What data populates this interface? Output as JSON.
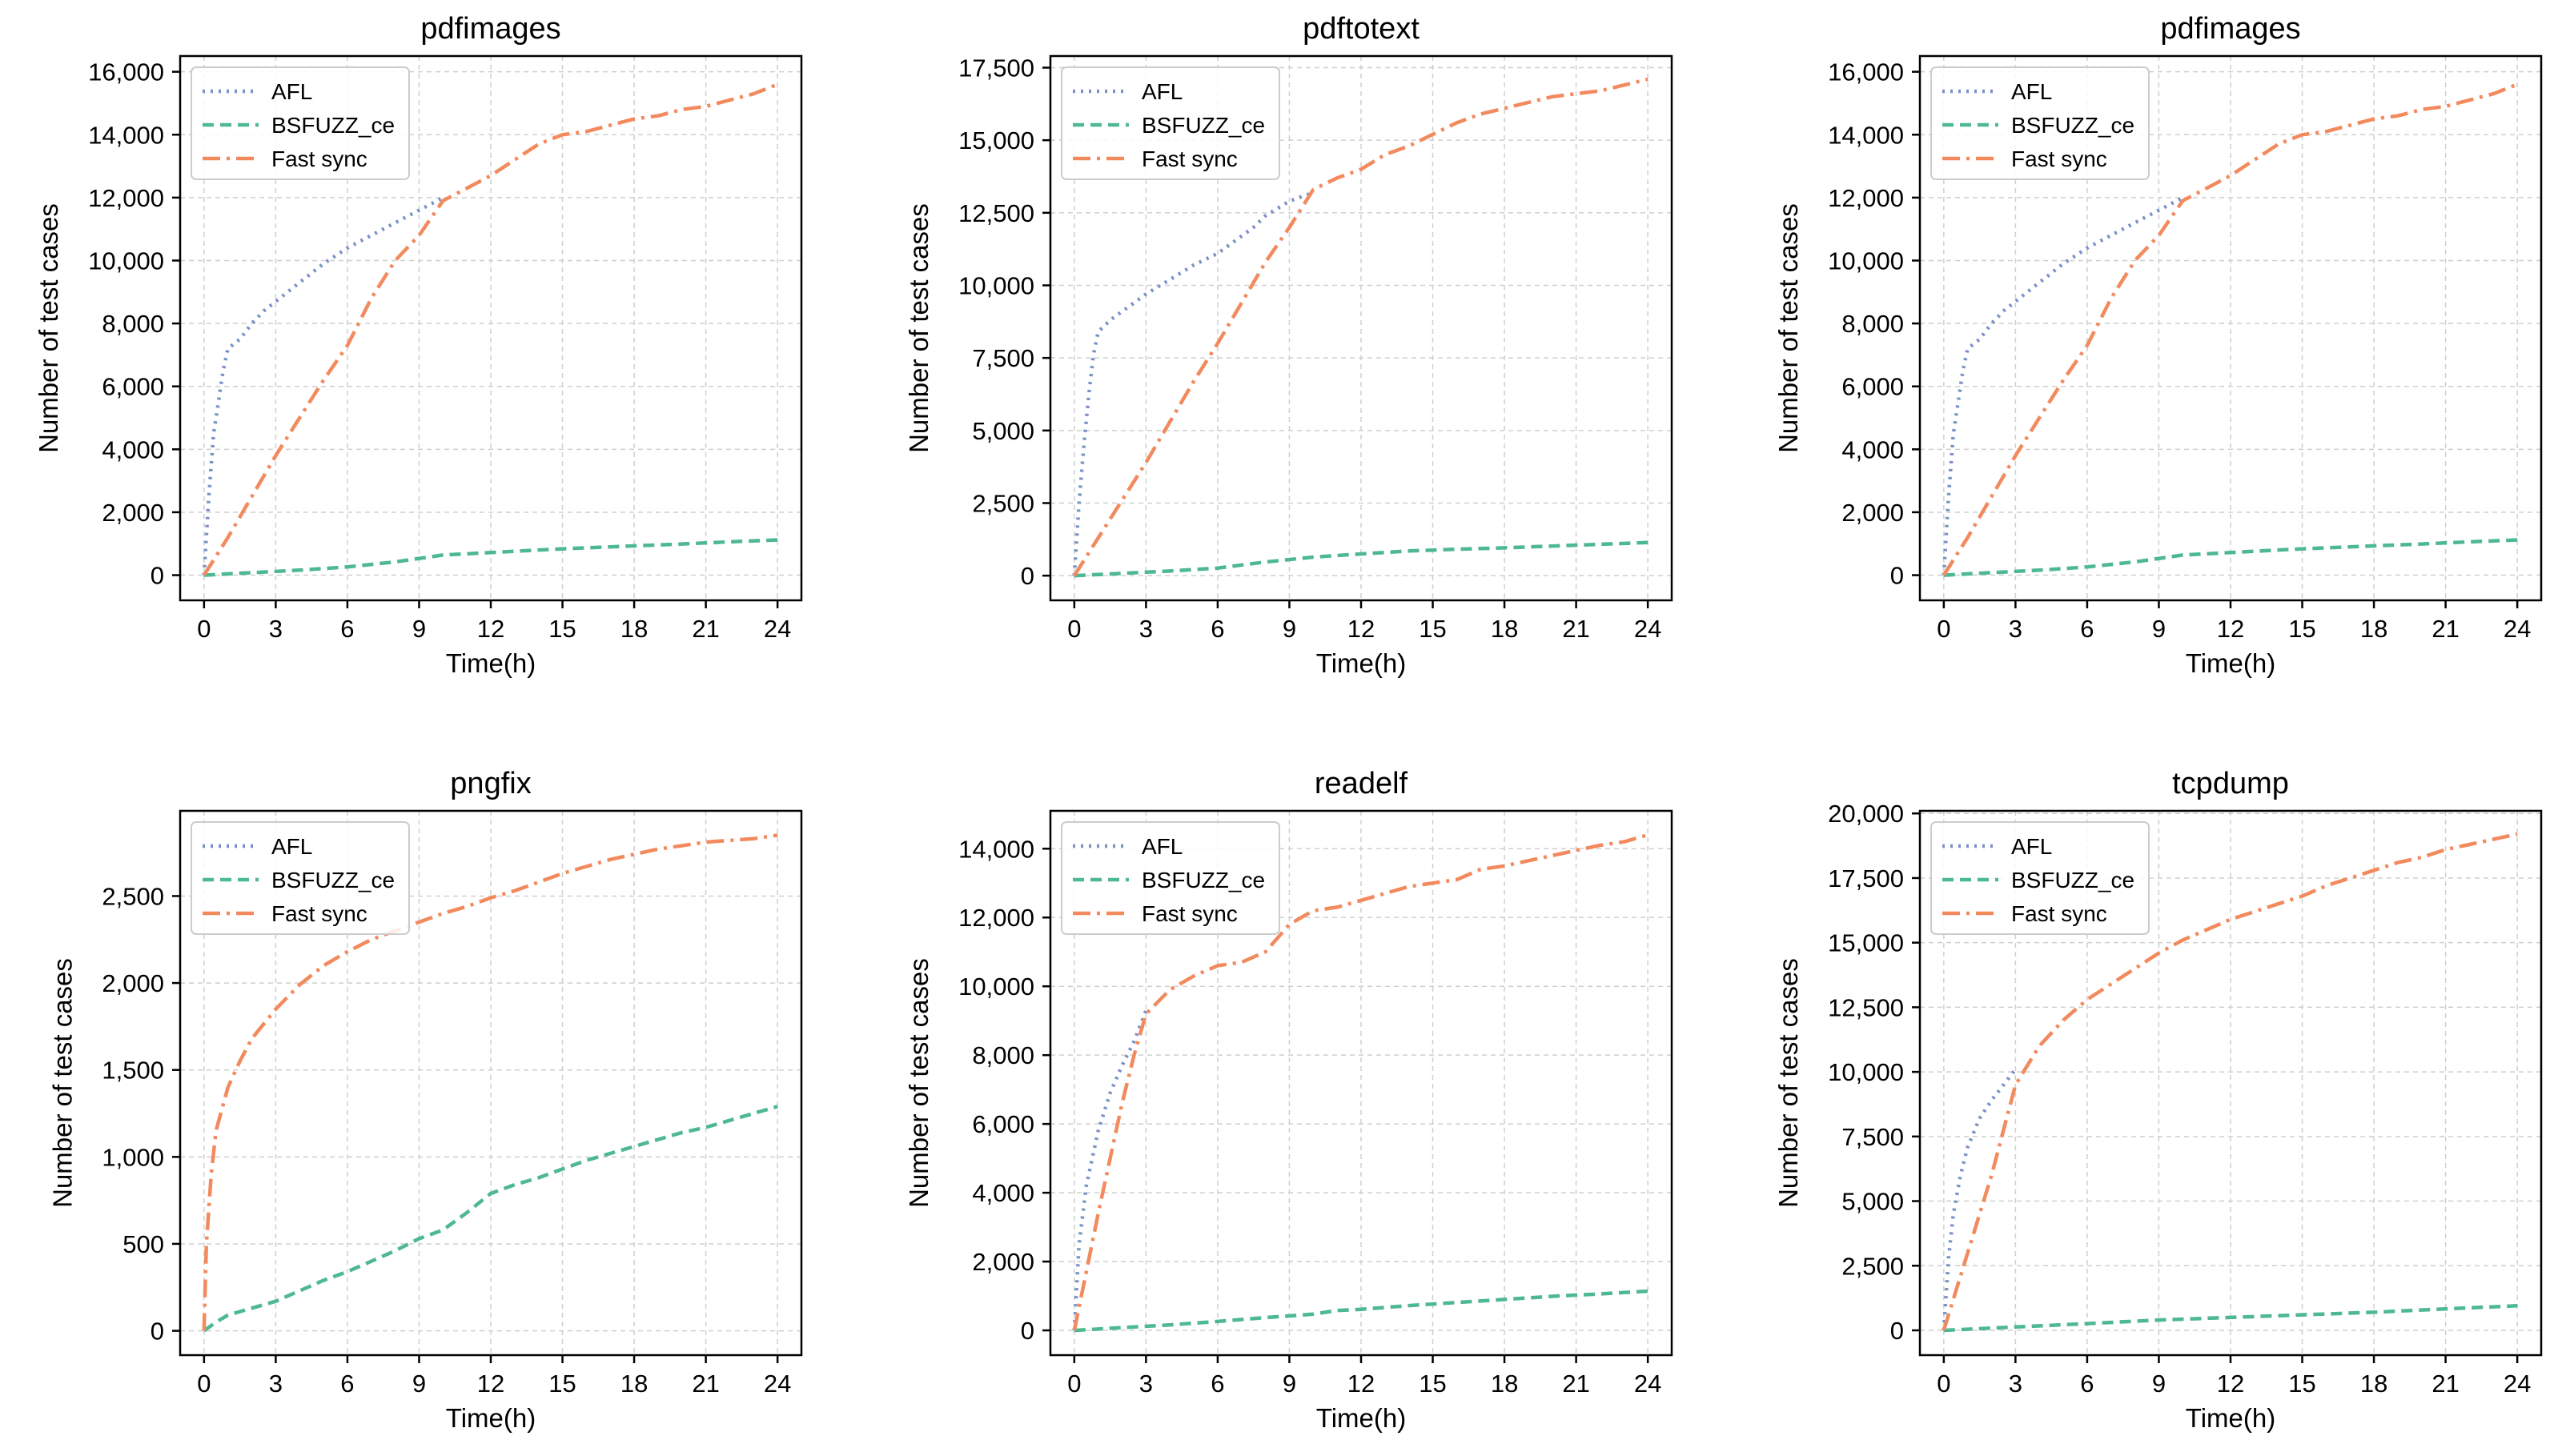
{
  "chart_data": [
    {
      "type": "line",
      "title": "pdfimages",
      "xlabel": "Time(h)",
      "ylabel": "Number of test cases",
      "xlim": [
        -1,
        25
      ],
      "ylim": [
        -800,
        16500
      ],
      "xticks": [
        "0",
        "3",
        "6",
        "9",
        "12",
        "15",
        "18",
        "21",
        "24"
      ],
      "yticks": [
        "0",
        "2,000",
        "4,000",
        "6,000",
        "8,000",
        "10,000",
        "12,000",
        "14,000",
        "16,000"
      ],
      "legend": "top-left",
      "series": [
        {
          "name": "AFL",
          "x": [
            0,
            0.2,
            0.4,
            0.6,
            0.8,
            1,
            1.5,
            2,
            2.5,
            3,
            4,
            5,
            6,
            7,
            8,
            9,
            10
          ],
          "y": [
            0,
            2500,
            4500,
            5500,
            6500,
            7200,
            7500,
            8000,
            8400,
            8700,
            9300,
            9900,
            10400,
            10800,
            11200,
            11600,
            12000
          ]
        },
        {
          "name": "BSFUZZ_ce",
          "x": [
            0,
            2,
            4,
            6,
            8,
            10,
            12,
            14,
            16,
            18,
            20,
            22,
            24
          ],
          "y": [
            0,
            80,
            160,
            260,
            420,
            640,
            720,
            800,
            870,
            930,
            990,
            1060,
            1120
          ]
        },
        {
          "name": "Fast sync",
          "x": [
            0,
            1,
            2,
            3,
            4,
            5,
            6,
            7,
            8,
            9,
            10,
            11,
            12,
            13,
            14,
            15,
            16,
            17,
            18,
            19,
            20,
            21,
            22,
            23,
            24
          ],
          "y": [
            0,
            1200,
            2500,
            3800,
            5000,
            6200,
            7300,
            8800,
            10000,
            10800,
            11900,
            12300,
            12700,
            13200,
            13700,
            14000,
            14100,
            14300,
            14500,
            14600,
            14800,
            14900,
            15100,
            15300,
            15600
          ]
        }
      ]
    },
    {
      "type": "line",
      "title": "pdftotext",
      "xlabel": "Time(h)",
      "ylabel": "Number of test cases",
      "xlim": [
        -1,
        25
      ],
      "ylim": [
        -850,
        17900
      ],
      "xticks": [
        "0",
        "3",
        "6",
        "9",
        "12",
        "15",
        "18",
        "21",
        "24"
      ],
      "yticks": [
        "0",
        "2,500",
        "5,000",
        "7,500",
        "10,000",
        "12,500",
        "15,000",
        "17,500"
      ],
      "legend": "top-left",
      "series": [
        {
          "name": "AFL",
          "x": [
            0,
            0.2,
            0.4,
            0.6,
            0.8,
            1,
            1.5,
            2,
            2.5,
            3,
            4,
            5,
            6,
            7,
            7.5,
            8,
            9,
            10
          ],
          "y": [
            0,
            2500,
            4500,
            6200,
            7600,
            8400,
            8800,
            9100,
            9400,
            9700,
            10200,
            10700,
            11100,
            11700,
            12000,
            12400,
            12900,
            13200
          ]
        },
        {
          "name": "BSFUZZ_ce",
          "x": [
            0,
            2,
            4,
            6,
            8,
            10,
            12,
            14,
            16,
            18,
            20,
            22,
            24
          ],
          "y": [
            0,
            80,
            160,
            260,
            470,
            640,
            750,
            850,
            910,
            960,
            1020,
            1080,
            1140
          ]
        },
        {
          "name": "Fast sync",
          "x": [
            0,
            1,
            2,
            3,
            4,
            5,
            6,
            7,
            8,
            9,
            10,
            11,
            12,
            13,
            14,
            15,
            16,
            17,
            18,
            19,
            20,
            21,
            22,
            23,
            24
          ],
          "y": [
            0,
            1300,
            2600,
            3900,
            5300,
            6700,
            8000,
            9400,
            10800,
            12000,
            13300,
            13700,
            14000,
            14500,
            14800,
            15200,
            15600,
            15900,
            16100,
            16300,
            16500,
            16600,
            16700,
            16900,
            17100
          ]
        }
      ]
    },
    {
      "type": "line",
      "title": "pdfimages",
      "xlabel": "Time(h)",
      "ylabel": "Number of test cases",
      "xlim": [
        -1,
        25
      ],
      "ylim": [
        -800,
        16500
      ],
      "xticks": [
        "0",
        "3",
        "6",
        "9",
        "12",
        "15",
        "18",
        "21",
        "24"
      ],
      "yticks": [
        "0",
        "2,000",
        "4,000",
        "6,000",
        "8,000",
        "10,000",
        "12,000",
        "14,000",
        "16,000"
      ],
      "legend": "top-left",
      "series": [
        {
          "name": "AFL",
          "x": [
            0,
            0.2,
            0.4,
            0.6,
            0.8,
            1,
            1.5,
            2,
            2.5,
            3,
            4,
            5,
            6,
            7,
            8,
            9,
            10
          ],
          "y": [
            0,
            2500,
            4500,
            5500,
            6500,
            7200,
            7500,
            8000,
            8400,
            8700,
            9300,
            9900,
            10400,
            10800,
            11200,
            11600,
            12000
          ]
        },
        {
          "name": "BSFUZZ_ce",
          "x": [
            0,
            2,
            4,
            6,
            8,
            10,
            12,
            14,
            16,
            18,
            20,
            22,
            24
          ],
          "y": [
            0,
            80,
            160,
            260,
            420,
            640,
            720,
            800,
            870,
            930,
            990,
            1060,
            1120
          ]
        },
        {
          "name": "Fast sync",
          "x": [
            0,
            1,
            2,
            3,
            4,
            5,
            6,
            7,
            8,
            9,
            10,
            11,
            12,
            13,
            14,
            15,
            16,
            17,
            18,
            19,
            20,
            21,
            22,
            23,
            24
          ],
          "y": [
            0,
            1200,
            2500,
            3800,
            5000,
            6200,
            7300,
            8800,
            10000,
            10800,
            11900,
            12300,
            12700,
            13200,
            13700,
            14000,
            14100,
            14300,
            14500,
            14600,
            14800,
            14900,
            15100,
            15300,
            15600
          ]
        }
      ]
    },
    {
      "type": "line",
      "title": "pngfix",
      "xlabel": "Time(h)",
      "ylabel": "Number of test cases",
      "xlim": [
        -1,
        25
      ],
      "ylim": [
        -140,
        2990
      ],
      "xticks": [
        "0",
        "3",
        "6",
        "9",
        "12",
        "15",
        "18",
        "21",
        "24"
      ],
      "yticks": [
        "0",
        "500",
        "1,000",
        "1,500",
        "2,000",
        "2,500"
      ],
      "legend": "top-left",
      "series": [
        {
          "name": "AFL",
          "x": [],
          "y": []
        },
        {
          "name": "BSFUZZ_ce",
          "x": [
            0,
            0.5,
            1,
            2,
            3,
            4,
            5,
            6,
            7,
            8,
            9,
            10,
            11,
            12,
            13,
            14,
            15,
            16,
            17,
            18,
            19,
            20,
            21,
            22,
            23,
            24
          ],
          "y": [
            0,
            50,
            90,
            130,
            170,
            230,
            290,
            340,
            400,
            460,
            530,
            580,
            680,
            790,
            840,
            880,
            930,
            980,
            1020,
            1060,
            1100,
            1140,
            1170,
            1210,
            1250,
            1290
          ]
        },
        {
          "name": "Fast sync",
          "x": [
            0,
            0.1,
            0.3,
            0.5,
            0.8,
            1,
            1.5,
            2,
            3,
            4,
            5,
            6,
            7,
            8,
            9,
            10,
            11,
            12,
            13,
            14,
            15,
            16,
            17,
            18,
            19,
            20,
            21,
            22,
            23,
            24
          ],
          "y": [
            0,
            500,
            900,
            1150,
            1300,
            1400,
            1550,
            1680,
            1850,
            1990,
            2100,
            2180,
            2250,
            2300,
            2350,
            2400,
            2440,
            2490,
            2530,
            2580,
            2630,
            2670,
            2710,
            2740,
            2770,
            2790,
            2810,
            2820,
            2830,
            2850
          ]
        }
      ]
    },
    {
      "type": "line",
      "title": "readelf",
      "xlabel": "Time(h)",
      "ylabel": "Number of test cases",
      "xlim": [
        -1,
        25
      ],
      "ylim": [
        -720,
        15100
      ],
      "xticks": [
        "0",
        "3",
        "6",
        "9",
        "12",
        "15",
        "18",
        "21",
        "24"
      ],
      "yticks": [
        "0",
        "2,000",
        "4,000",
        "6,000",
        "8,000",
        "10,000",
        "12,000",
        "14,000"
      ],
      "legend": "top-left",
      "series": [
        {
          "name": "AFL",
          "x": [
            0,
            0.2,
            0.5,
            1,
            1.5,
            2,
            2.5,
            3
          ],
          "y": [
            0,
            2500,
            4200,
            5800,
            6900,
            7700,
            8400,
            9300
          ]
        },
        {
          "name": "BSFUZZ_ce",
          "x": [
            0,
            2,
            4,
            6,
            8,
            10,
            11,
            12,
            14,
            16,
            18,
            20,
            22,
            24
          ],
          "y": [
            0,
            80,
            160,
            260,
            370,
            470,
            580,
            610,
            720,
            810,
            900,
            990,
            1060,
            1140
          ]
        },
        {
          "name": "Fast sync",
          "x": [
            0,
            0.5,
            1,
            1.5,
            2,
            2.5,
            3,
            4,
            5,
            6,
            7,
            8,
            9,
            10,
            11,
            12,
            13,
            14,
            15,
            16,
            17,
            18,
            19,
            20,
            21,
            22,
            23,
            24
          ],
          "y": [
            0,
            1700,
            3400,
            5000,
            6600,
            8000,
            9200,
            9900,
            10300,
            10600,
            10700,
            11000,
            11800,
            12200,
            12300,
            12500,
            12700,
            12900,
            13000,
            13100,
            13400,
            13500,
            13650,
            13800,
            13950,
            14100,
            14200,
            14400
          ]
        }
      ]
    },
    {
      "type": "line",
      "title": "tcpdump",
      "xlabel": "Time(h)",
      "ylabel": "Number of test cases",
      "xlim": [
        -1,
        25
      ],
      "ylim": [
        -960,
        20100
      ],
      "xticks": [
        "0",
        "3",
        "6",
        "9",
        "12",
        "15",
        "18",
        "21",
        "24"
      ],
      "yticks": [
        "0",
        "2,500",
        "5,000",
        "7,500",
        "10,000",
        "12,500",
        "15,000",
        "17,500",
        "20,000"
      ],
      "legend": "top-left",
      "series": [
        {
          "name": "AFL",
          "x": [
            0,
            0.2,
            0.4,
            0.7,
            1,
            1.5,
            2,
            2.5,
            3
          ],
          "y": [
            0,
            2800,
            4500,
            6000,
            7100,
            8200,
            8900,
            9500,
            10100
          ]
        },
        {
          "name": "BSFUZZ_ce",
          "x": [
            0,
            3,
            6,
            9,
            12,
            15,
            18,
            21,
            24
          ],
          "y": [
            0,
            130,
            260,
            400,
            500,
            600,
            700,
            830,
            950
          ]
        },
        {
          "name": "Fast sync",
          "x": [
            0,
            1,
            2,
            3,
            4,
            5,
            6,
            7,
            8,
            9,
            10,
            11,
            12,
            13,
            14,
            15,
            16,
            17,
            18,
            19,
            20,
            21,
            22,
            23,
            24
          ],
          "y": [
            0,
            3000,
            6000,
            9500,
            11000,
            12000,
            12800,
            13400,
            14000,
            14600,
            15100,
            15500,
            15900,
            16200,
            16500,
            16800,
            17200,
            17500,
            17800,
            18100,
            18300,
            18600,
            18800,
            19000,
            19200
          ]
        }
      ]
    }
  ],
  "styles": {
    "AFL": {
      "color": "#7a91c8",
      "dash": "3 7"
    },
    "BSFUZZ_ce": {
      "color": "#4eb892",
      "dash": "14 8"
    },
    "Fast sync": {
      "color": "#f28a5e",
      "dash": "22 8 4 8"
    }
  }
}
